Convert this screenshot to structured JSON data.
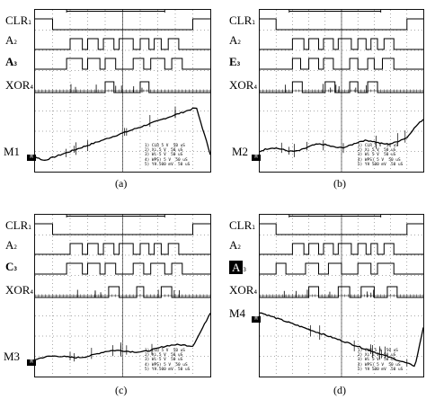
{
  "panels": [
    {
      "id": "a",
      "caption": "(a)",
      "labels": [
        "CLR",
        "A",
        "A",
        "XOR"
      ],
      "label_styles": [
        "normal",
        "normal",
        "bold",
        "normal"
      ],
      "ch_markers": [
        "1",
        "2",
        "3",
        "4"
      ],
      "m_label": "M1",
      "m_tag": "M",
      "legend": [
        "1) CLR 5 V  50 uS",
        "2) Xi 5 V  50 uS",
        "3) Wi 5 V  50 uS",
        "4) WPS) 5 V  50 uS",
        "5) YH 500 mV  50 uS"
      ],
      "analog": {
        "kind": "rising",
        "start": 0.12,
        "dip": 0.06,
        "end": 0.88
      }
    },
    {
      "id": "b",
      "caption": "(b)",
      "labels": [
        "CLR",
        "A",
        "E",
        "XOR"
      ],
      "label_styles": [
        "normal",
        "normal",
        "bold",
        "normal"
      ],
      "ch_markers": [
        "1",
        "2",
        "3",
        "4"
      ],
      "m_label": "M2",
      "m_tag": "M",
      "legend": [
        "1) CLR 5 V  50 uS",
        "2) Xi 5 V  50 uS",
        "3) Wi 5 V  50 uS",
        "4) WPS) 5 V  50 uS",
        "5) YH 500 mV  50 uS"
      ],
      "analog": {
        "kind": "flat",
        "start": 0.2,
        "dip": 0.2,
        "end": 0.42
      }
    },
    {
      "id": "c",
      "caption": "(c)",
      "labels": [
        "CLR",
        "A",
        "C",
        "XOR"
      ],
      "label_styles": [
        "normal",
        "normal",
        "bold",
        "normal"
      ],
      "ch_markers": [
        "1",
        "2",
        "3",
        "4"
      ],
      "m_label": "M3",
      "m_tag": "M",
      "legend": [
        "1) CLR 5 V  50 uS",
        "2) Xi 5 V  50 uS",
        "3) Wi 5 V  50 uS",
        "4) WPS) 5 V  50 uS",
        "5) YH 500 mV  50 uS"
      ],
      "analog": {
        "kind": "mild",
        "start": 0.15,
        "dip": 0.12,
        "end": 0.55
      }
    },
    {
      "id": "d",
      "caption": "(d)",
      "labels": [
        "CLR",
        "A",
        "A",
        "XOR"
      ],
      "label_styles": [
        "normal",
        "normal",
        "boxed",
        "normal"
      ],
      "ch_markers": [
        "1",
        "2",
        "3",
        "4"
      ],
      "m_label": "M4",
      "m_tag": "M",
      "legend": [
        "1) CLR 5 V  50 uS",
        "2) Xi 5 V  50 uS",
        "3) Wi 5 V  50 uS",
        "4) WPS) 5 V  50 uS",
        "5) YH 500 mV  50 uS"
      ],
      "analog": {
        "kind": "falling",
        "start": 0.88,
        "dip": 0.88,
        "end": 0.05
      }
    }
  ]
}
